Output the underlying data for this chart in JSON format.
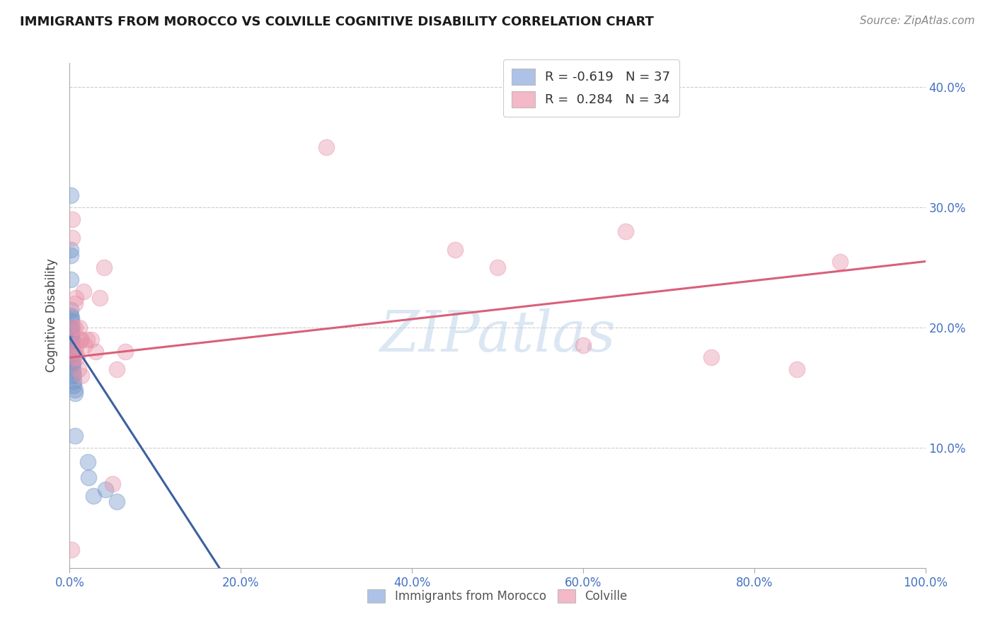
{
  "title": "IMMIGRANTS FROM MOROCCO VS COLVILLE COGNITIVE DISABILITY CORRELATION CHART",
  "source": "Source: ZipAtlas.com",
  "ylabel": "Cognitive Disability",
  "xlim": [
    0.0,
    1.0
  ],
  "ylim": [
    0.0,
    0.42
  ],
  "x_ticks": [
    0.0,
    0.2,
    0.4,
    0.6,
    0.8,
    1.0
  ],
  "x_tick_labels": [
    "0.0%",
    "20.0%",
    "40.0%",
    "60.0%",
    "80.0%",
    "100.0%"
  ],
  "y_ticks": [
    0.0,
    0.1,
    0.2,
    0.3,
    0.4
  ],
  "y_tick_labels": [
    "",
    "10.0%",
    "20.0%",
    "30.0%",
    "40.0%"
  ],
  "blue_color": "#7094c8",
  "pink_color": "#e891a8",
  "blue_line_color": "#3d5fa0",
  "pink_line_color": "#d9607a",
  "legend_blue_fill": "#aec2e8",
  "legend_pink_fill": "#f4b8c8",
  "R_blue": -0.619,
  "N_blue": 37,
  "R_pink": 0.284,
  "N_pink": 34,
  "blue_scatter_x": [
    0.001,
    0.001,
    0.001,
    0.001,
    0.001,
    0.001,
    0.001,
    0.002,
    0.002,
    0.002,
    0.002,
    0.002,
    0.002,
    0.002,
    0.002,
    0.003,
    0.003,
    0.003,
    0.003,
    0.003,
    0.003,
    0.003,
    0.004,
    0.004,
    0.004,
    0.004,
    0.005,
    0.005,
    0.005,
    0.006,
    0.006,
    0.006,
    0.021,
    0.022,
    0.028,
    0.042,
    0.055
  ],
  "blue_scatter_y": [
    0.31,
    0.265,
    0.26,
    0.24,
    0.215,
    0.21,
    0.2,
    0.208,
    0.205,
    0.2,
    0.198,
    0.195,
    0.193,
    0.192,
    0.19,
    0.188,
    0.185,
    0.183,
    0.18,
    0.178,
    0.175,
    0.168,
    0.172,
    0.17,
    0.165,
    0.162,
    0.16,
    0.155,
    0.152,
    0.148,
    0.145,
    0.11,
    0.088,
    0.075,
    0.06,
    0.065,
    0.055
  ],
  "pink_scatter_x": [
    0.002,
    0.003,
    0.003,
    0.004,
    0.005,
    0.006,
    0.006,
    0.006,
    0.007,
    0.008,
    0.009,
    0.01,
    0.011,
    0.012,
    0.014,
    0.014,
    0.016,
    0.018,
    0.02,
    0.025,
    0.03,
    0.035,
    0.04,
    0.05,
    0.055,
    0.065,
    0.3,
    0.45,
    0.5,
    0.6,
    0.65,
    0.75,
    0.85,
    0.9
  ],
  "pink_scatter_y": [
    0.015,
    0.275,
    0.29,
    0.2,
    0.175,
    0.2,
    0.22,
    0.18,
    0.225,
    0.185,
    0.175,
    0.165,
    0.2,
    0.19,
    0.19,
    0.16,
    0.23,
    0.185,
    0.19,
    0.19,
    0.18,
    0.225,
    0.25,
    0.07,
    0.165,
    0.18,
    0.35,
    0.265,
    0.25,
    0.185,
    0.28,
    0.175,
    0.165,
    0.255
  ],
  "blue_line_x0": 0.0,
  "blue_line_y0": 0.192,
  "blue_line_x1": 0.175,
  "blue_line_y1": 0.0,
  "pink_line_x0": 0.0,
  "pink_line_y0": 0.175,
  "pink_line_x1": 1.0,
  "pink_line_y1": 0.255,
  "watermark": "ZIPatlas",
  "bg_color": "#ffffff",
  "grid_color": "#c8c8c8",
  "tick_color": "#4472c4",
  "legend_label_blue": "Immigrants from Morocco",
  "legend_label_pink": "Colville"
}
